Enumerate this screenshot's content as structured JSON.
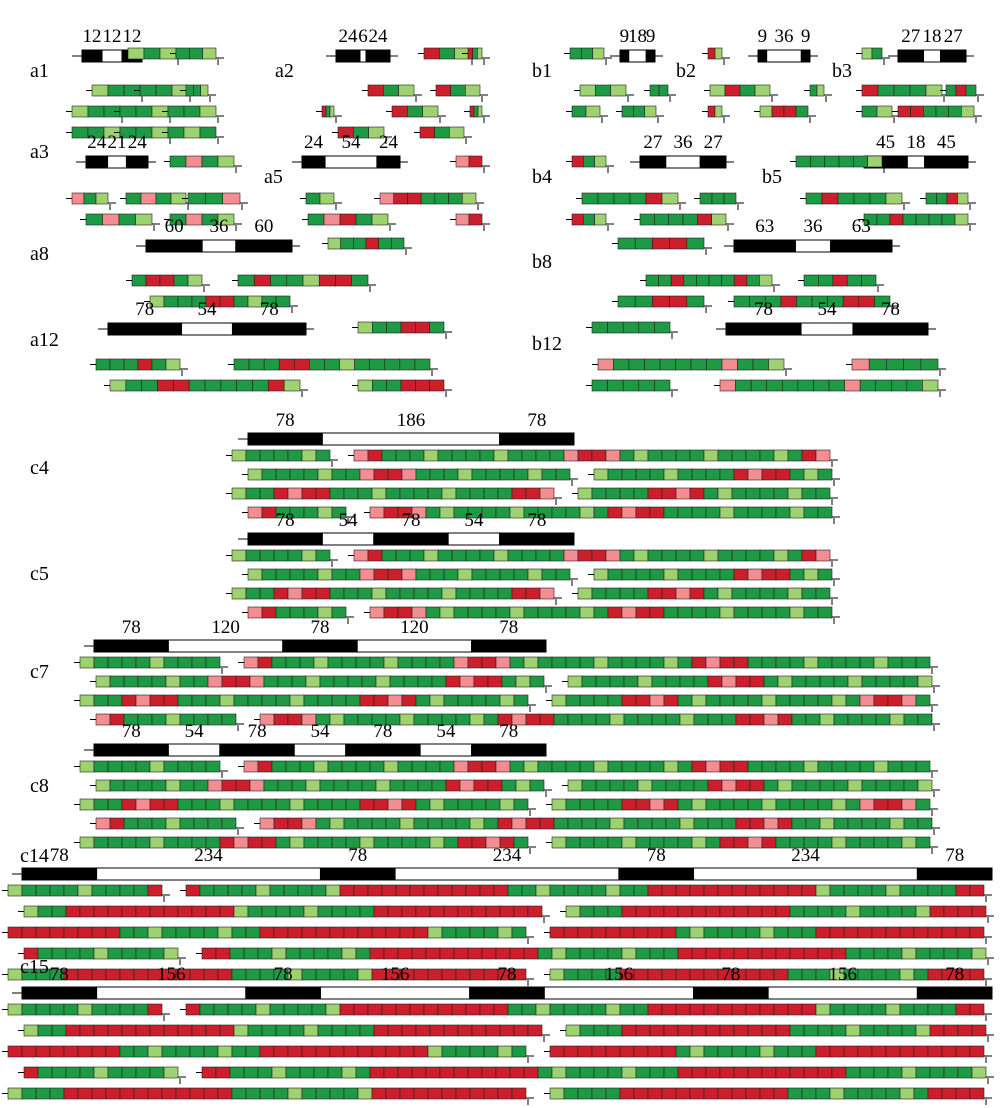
{
  "colors": {
    "black_segment": "#000000",
    "white_segment": "#ffffff",
    "dark_green": "#1e9a45",
    "light_green": "#9ed170",
    "red": "#cc1f2b",
    "pink": "#f48d92"
  },
  "panels": [
    {
      "id": "a1",
      "label": "a1",
      "numbers": [
        "12",
        "12",
        "12"
      ],
      "rows": [
        [
          [
            "g",
            "G",
            "g"
          ],
          [
            "G",
            "G",
            "g"
          ]
        ],
        [
          [
            "g",
            "G",
            "G"
          ],
          [
            "G",
            "G",
            "g"
          ],
          [
            "G",
            "G",
            "g"
          ]
        ],
        [
          [
            "g",
            "G",
            "G"
          ],
          [
            "G",
            "G",
            "g"
          ],
          [
            "G",
            "G",
            "g"
          ]
        ],
        [
          [
            "G",
            "G",
            "g"
          ],
          [
            "G",
            "G",
            "g"
          ],
          [
            "G",
            "g",
            "G"
          ]
        ]
      ]
    },
    {
      "id": "a2",
      "label": "a2",
      "numbers": [
        "24",
        "6",
        "24"
      ],
      "rows": [
        [
          [
            "R",
            "G",
            "g"
          ],
          [
            "R",
            "G",
            "g"
          ]
        ],
        [
          [
            "R",
            "G",
            "g"
          ],
          [
            "R",
            "G",
            "g"
          ]
        ],
        [
          [
            "R",
            "G",
            "g"
          ],
          [
            "R",
            "G",
            "g"
          ],
          [
            "R",
            "G",
            "g"
          ]
        ],
        [
          [
            "R",
            "G",
            "g"
          ],
          [
            "R",
            "G",
            "g"
          ]
        ]
      ]
    },
    {
      "id": "a3",
      "label": "a3",
      "numbers": [
        "24",
        "21",
        "24"
      ],
      "rows": [
        [
          [
            "G",
            "p",
            "G",
            "g"
          ]
        ],
        [
          [
            "p",
            "G",
            "g"
          ],
          [
            "G",
            "p",
            "G",
            "g"
          ],
          [
            "G",
            "G",
            "p"
          ]
        ],
        [
          [
            "G",
            "p",
            "G",
            "g"
          ],
          [
            "G",
            "p",
            "G",
            "g"
          ]
        ]
      ]
    },
    {
      "id": "a5",
      "label": "a5",
      "numbers": [
        "24",
        "54",
        "24"
      ],
      "rows": [
        [
          [
            "p",
            "R"
          ]
        ],
        [
          [
            "G",
            "g"
          ],
          [
            "p",
            "R",
            "R",
            "G",
            "G",
            "G",
            "g"
          ]
        ],
        [
          [
            "G",
            "p",
            "R",
            "G",
            "g"
          ],
          [
            "p",
            "R"
          ]
        ]
      ]
    },
    {
      "id": "a8",
      "label": "a8",
      "numbers": [
        "60",
        "36",
        "60"
      ],
      "rows": [
        [
          [
            "g",
            "G",
            "G",
            "R",
            "G",
            "G"
          ]
        ],
        [
          [
            "G",
            "R",
            "R",
            "G",
            "g"
          ],
          [
            "G",
            "R",
            "G",
            "G",
            "g",
            "R",
            "R",
            "G"
          ]
        ],
        [
          [
            "g",
            "G",
            "G",
            "G",
            "R",
            "R",
            "G",
            "g",
            "G",
            "G"
          ]
        ]
      ]
    },
    {
      "id": "a12",
      "label": "a12",
      "numbers": [
        "78",
        "54",
        "78"
      ],
      "rows": [
        [
          [
            "g",
            "G",
            "G",
            "R",
            "R",
            "G"
          ]
        ],
        [
          [
            "G",
            "G",
            "G",
            "R",
            "G",
            "g"
          ],
          [
            "G",
            "G",
            "G",
            "R",
            "R",
            "G",
            "G",
            "g",
            "G",
            "G",
            "G",
            "G",
            "G"
          ]
        ],
        [
          [
            "g",
            "G",
            "G",
            "R",
            "R",
            "G",
            "G",
            "G",
            "G",
            "G",
            "R",
            "g"
          ],
          [
            "g",
            "G",
            "G",
            "R",
            "R",
            "R"
          ]
        ]
      ]
    },
    {
      "id": "b1",
      "label": "b1",
      "numbers": [
        "9",
        "18",
        "9"
      ],
      "rows": [
        [
          [
            "G",
            "G",
            "g"
          ]
        ],
        [
          [
            "g",
            "G",
            "g"
          ],
          [
            "G",
            "G"
          ]
        ],
        [
          [
            "G",
            "g"
          ],
          [
            "G",
            "G",
            "g"
          ]
        ]
      ]
    },
    {
      "id": "b2",
      "label": "b2",
      "numbers": [
        "9",
        "36",
        "9"
      ],
      "rows": [
        [
          [
            "R",
            "g"
          ]
        ],
        [
          [
            "g",
            "R",
            "G",
            "g"
          ],
          [
            "G",
            "g"
          ]
        ],
        [
          [
            "R",
            "g"
          ],
          [
            "g",
            "R",
            "R",
            "G"
          ]
        ]
      ]
    },
    {
      "id": "b3",
      "label": "b3",
      "numbers": [
        "27",
        "18",
        "27"
      ],
      "rows": [
        [
          [
            "g",
            "G"
          ]
        ],
        [
          [
            "R",
            "G",
            "G",
            "G",
            "g"
          ],
          [
            "G",
            "R",
            "G"
          ]
        ],
        [
          [
            "G",
            "g"
          ],
          [
            "R",
            "R",
            "G",
            "G",
            "G",
            "g"
          ]
        ]
      ]
    },
    {
      "id": "b4",
      "label": "b4",
      "numbers": [
        "27",
        "36",
        "27"
      ],
      "rows": [
        [
          [
            "R",
            "G",
            "g"
          ]
        ],
        [
          [
            "G",
            "G",
            "G",
            "G",
            "R",
            "g"
          ],
          [
            "G",
            "G",
            "G"
          ]
        ],
        [
          [
            "R",
            "G",
            "g"
          ],
          [
            "G",
            "G",
            "G",
            "G",
            "R",
            "g"
          ]
        ]
      ]
    },
    {
      "id": "b5",
      "label": "b5",
      "numbers": [
        "45",
        "18",
        "45"
      ],
      "rows": [
        [
          [
            "G",
            "G",
            "G",
            "G",
            "G",
            "g"
          ]
        ],
        [
          [
            "G",
            "R",
            "G",
            "G",
            "G",
            "g"
          ],
          [
            "G",
            "G",
            "R",
            "g"
          ]
        ],
        [
          [
            "G",
            "G",
            "R",
            "G",
            "G",
            "G",
            "G",
            "g"
          ]
        ]
      ]
    },
    {
      "id": "b8",
      "label": "b8",
      "numbers": [
        "63",
        "36",
        "63"
      ],
      "rows": [
        [
          [
            "G",
            "G",
            "R",
            "R",
            "G"
          ]
        ],
        [
          [
            "G",
            "G",
            "R",
            "G",
            "G",
            "G",
            "G",
            "R",
            "G",
            "g"
          ],
          [
            "G",
            "G",
            "R",
            "G",
            "G"
          ]
        ],
        [
          [
            "G",
            "G",
            "R",
            "R",
            "G"
          ],
          [
            "G",
            "G",
            "G",
            "R",
            "G",
            "G",
            "G",
            "R",
            "R",
            "G"
          ]
        ]
      ]
    },
    {
      "id": "b12",
      "label": "b12",
      "numbers": [
        "78",
        "54",
        "78"
      ],
      "rows": [
        [
          [
            "G",
            "G",
            "G",
            "G",
            "G"
          ]
        ],
        [
          [
            "p",
            "G",
            "G",
            "G",
            "G",
            "G",
            "G",
            "G",
            "p",
            "G",
            "G",
            "g"
          ],
          [
            "p",
            "G",
            "G",
            "G",
            "G"
          ]
        ],
        [
          [
            "G",
            "G",
            "G",
            "G",
            "G"
          ],
          [
            "p",
            "G",
            "G",
            "G",
            "G",
            "G",
            "G",
            "G",
            "p",
            "G",
            "G",
            "G",
            "G",
            "g"
          ]
        ]
      ]
    },
    {
      "id": "c4",
      "label": "c4",
      "numbers": [
        "78",
        "186",
        "78"
      ]
    },
    {
      "id": "c5",
      "label": "c5",
      "numbers": [
        "78",
        "54",
        "78",
        "54",
        "78"
      ]
    },
    {
      "id": "c7",
      "label": "c7",
      "numbers": [
        "78",
        "120",
        "78",
        "120",
        "78"
      ]
    },
    {
      "id": "c8",
      "label": "c8",
      "numbers": [
        "78",
        "54",
        "78",
        "54",
        "78",
        "54",
        "78"
      ]
    },
    {
      "id": "c14",
      "label": "c14",
      "numbers": [
        "78",
        "234",
        "78",
        "234",
        "78",
        "234",
        "78"
      ]
    },
    {
      "id": "c15",
      "label": "c15",
      "numbers": [
        "78",
        "156",
        "78",
        "156",
        "78",
        "156",
        "78",
        "156",
        "78"
      ]
    }
  ]
}
